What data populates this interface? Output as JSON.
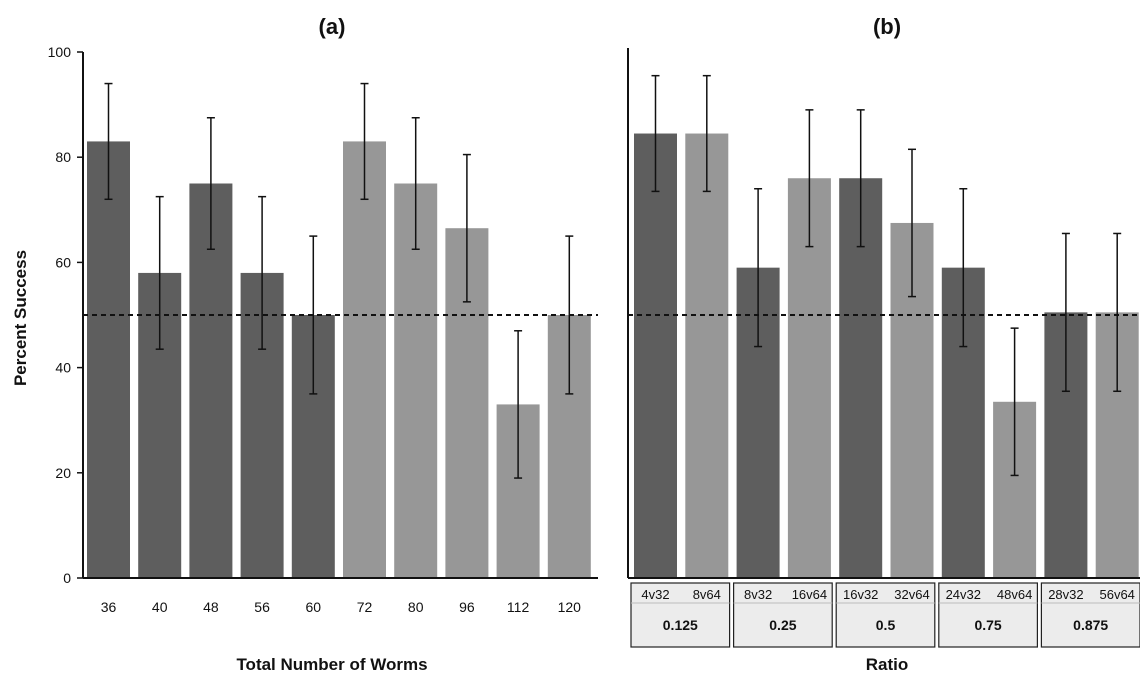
{
  "chart_data": [
    {
      "type": "bar",
      "title": "(a)",
      "xlabel": "Total Number of Worms",
      "ylabel": "Percent Success",
      "ylim": [
        0,
        100
      ],
      "yticks": [
        0,
        20,
        40,
        60,
        80,
        100
      ],
      "reference_line": 50,
      "categories": [
        "36",
        "40",
        "48",
        "56",
        "60",
        "72",
        "80",
        "96",
        "112",
        "120"
      ],
      "values": [
        83,
        58,
        75,
        58,
        50,
        83,
        75,
        66.5,
        33,
        50
      ],
      "error": [
        11,
        14.5,
        12.5,
        14.5,
        15,
        11,
        12.5,
        14,
        14,
        15
      ],
      "shade": [
        "dark",
        "dark",
        "dark",
        "dark",
        "dark",
        "light",
        "light",
        "light",
        "light",
        "light"
      ],
      "colors": {
        "dark": "#5e5e5e",
        "light": "#979797"
      }
    },
    {
      "type": "bar",
      "title": "(b)",
      "xlabel": "Ratio",
      "ylabel": "",
      "ylim": [
        0,
        100
      ],
      "reference_line": 50,
      "categories": [
        "4v32",
        "8v64",
        "8v32",
        "16v64",
        "16v32",
        "32v64",
        "24v32",
        "48v64",
        "28v32",
        "56v64"
      ],
      "groups": [
        "0.125",
        "0.25",
        "0.5",
        "0.75",
        "0.875"
      ],
      "values": [
        84.5,
        84.5,
        59,
        76,
        76,
        67.5,
        59,
        33.5,
        50.5,
        50.5
      ],
      "error": [
        11,
        11,
        15,
        13,
        13,
        14,
        15,
        14,
        15,
        15
      ],
      "shade": [
        "dark",
        "light",
        "dark",
        "light",
        "dark",
        "light",
        "dark",
        "light",
        "dark",
        "light"
      ],
      "colors": {
        "dark": "#5e5e5e",
        "light": "#979797"
      }
    }
  ]
}
